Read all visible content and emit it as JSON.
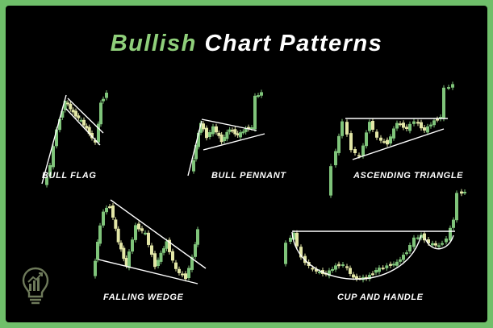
{
  "title": {
    "accent": "Bullish",
    "rest": "Chart Patterns"
  },
  "colors": {
    "frame": "#6fbf6a",
    "background": "#000000",
    "accent_text": "#8fcf7a",
    "bull_candle": "#7fc47a",
    "bear_candle": "#e2e6a6",
    "trendline": "#ffffff"
  },
  "patterns": [
    {
      "id": "bull-flag",
      "label": "BULL FLAG"
    },
    {
      "id": "bull-pennant",
      "label": "BULL PENNANT"
    },
    {
      "id": "ascending-triangle",
      "label": "ASCENDING TRIANGLE"
    },
    {
      "id": "falling-wedge",
      "label": "FALLING WEDGE"
    },
    {
      "id": "cup-and-handle",
      "label": "CUP AND HANDLE"
    }
  ],
  "logo_icon": "lightbulb-chart-icon"
}
